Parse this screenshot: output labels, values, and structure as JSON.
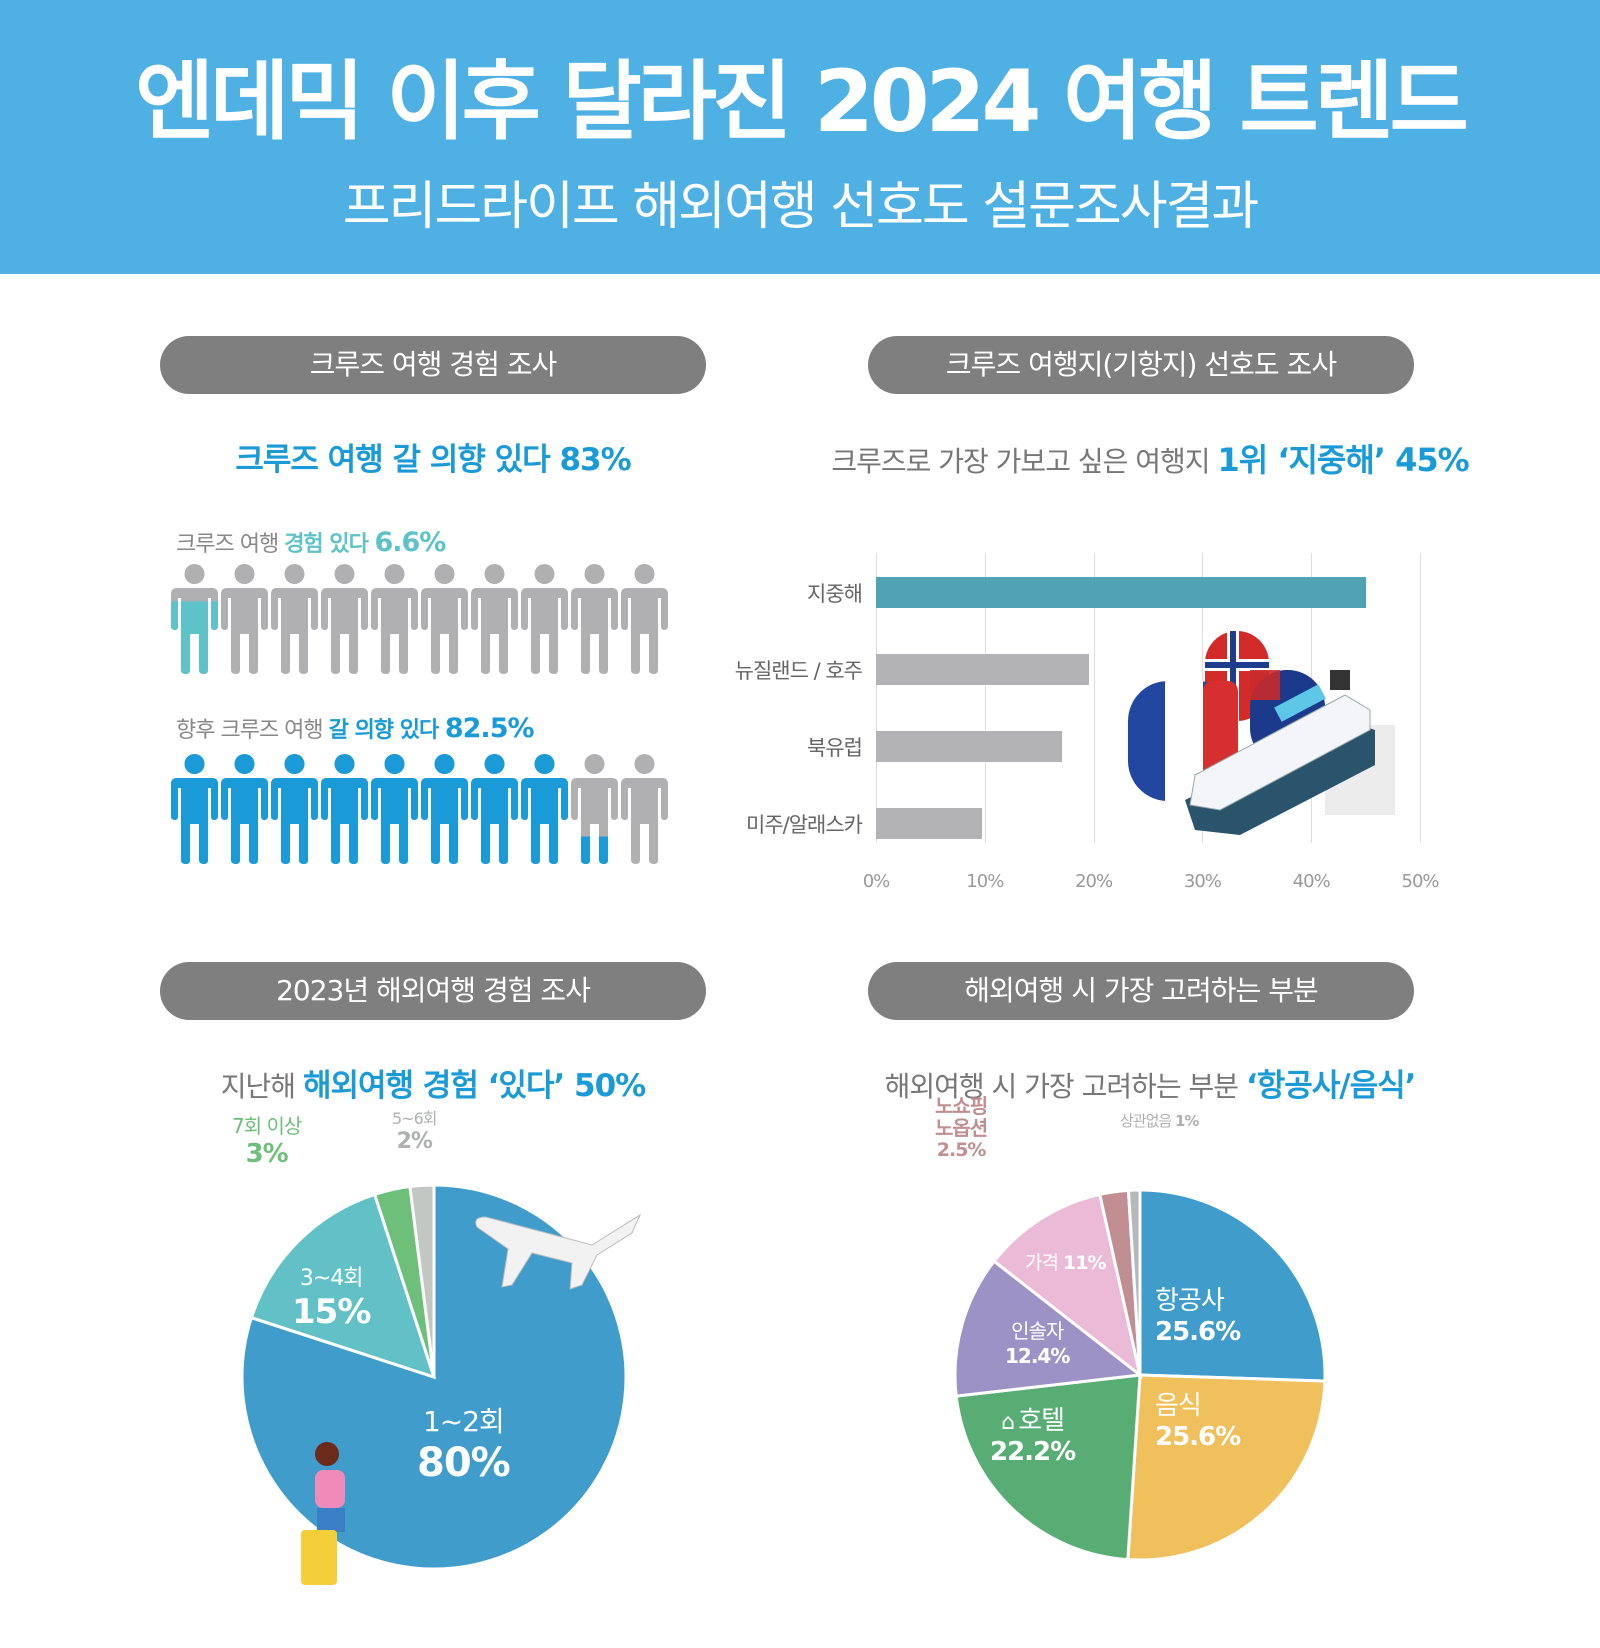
{
  "header": {
    "title": "엔데믹 이후 달라진 2024 여행 트렌드",
    "subtitle": "프리드라이프 해외여행 선호도 설문조사결과",
    "background_color": "#4fb0e4"
  },
  "sections": {
    "cruise_experience": {
      "pill": "크루즈 여행 경험 조사",
      "headline": "크루즈 여행 갈 의향 있다 83%",
      "row1": {
        "prefix": "크루즈 여행 ",
        "highlight": "경험 있다 ",
        "value": "6.6%",
        "color": "#5ec3c9"
      },
      "row2": {
        "prefix": "향후 크루즈 여행 ",
        "highlight": "갈 의향 있다 ",
        "value": "82.5%",
        "color": "#1a9ad6"
      }
    },
    "cruise_destination": {
      "pill": "크루즈 여행지(기항지) 선호도 조사",
      "headline_prefix": "크루즈로 가장 가보고 싶은 여행지 ",
      "headline_highlight": "1위 ‘지중해’ 45%"
    },
    "overseas_2023": {
      "pill": "2023년 해외여행 경험 조사",
      "headline_prefix": "지난해 ",
      "headline_highlight": "해외여행 경험 ‘있다’ 50%"
    },
    "consideration": {
      "pill": "해외여행 시 가장 고려하는 부분",
      "headline_prefix": "해외여행 시 가장 고려하는 부분 ",
      "headline_highlight": "‘항공사/음식’"
    }
  },
  "chart_data": [
    {
      "type": "pictogram",
      "title": "크루즈 여행 경험 있다",
      "units": 10,
      "value": 6.6,
      "unit": "%",
      "fill_color": "#5ec3c9"
    },
    {
      "type": "pictogram",
      "title": "향후 크루즈 여행 갈 의향 있다",
      "units": 10,
      "value": 82.5,
      "unit": "%",
      "fill_color": "#1a9ad6"
    },
    {
      "type": "bar",
      "orientation": "horizontal",
      "title": "크루즈 여행지(기항지) 선호도 조사",
      "categories": [
        "지중해",
        "뉴질랜드 / 호주",
        "북유럽",
        "미주/알래스카"
      ],
      "values": [
        45,
        19.6,
        17.1,
        9.7
      ],
      "colors": [
        "#4fa3b5",
        "#b3b3b5",
        "#b3b3b5",
        "#b3b3b5"
      ],
      "xlim": [
        0,
        50
      ],
      "xticks": [
        "0%",
        "10%",
        "20%",
        "30%",
        "40%",
        "50%"
      ],
      "grid": true,
      "xlabel": "",
      "ylabel": ""
    },
    {
      "type": "pie",
      "title": "2023년 해외여행 경험 조사",
      "categories": [
        "1~2회",
        "3~4회",
        "7회 이상",
        "5~6회"
      ],
      "values": [
        80,
        15,
        3,
        2
      ],
      "labels": [
        "80%",
        "15%",
        "3%",
        "2%"
      ],
      "colors": [
        "#3f9ccb",
        "#62c1c6",
        "#6dbf7a",
        "#c2c7c3"
      ],
      "label_colors": [
        "#ffffff",
        "#ffffff",
        "#6dbf7a",
        "#aeb1b0"
      ]
    },
    {
      "type": "pie",
      "title": "해외여행 시 가장 고려하는 부분",
      "categories": [
        "항공사",
        "음식",
        "호텔",
        "인솔자",
        "가격",
        "노쇼핑 노옵션",
        "상관없음"
      ],
      "values": [
        25.6,
        25.6,
        22.2,
        12.4,
        11,
        2.5,
        1
      ],
      "labels": [
        "25.6%",
        "25.6%",
        "22.2%",
        "12.4%",
        "11%",
        "2.5%",
        "1%"
      ],
      "colors": [
        "#3f9ccb",
        "#f0c05c",
        "#57ad73",
        "#9d92c6",
        "#ebbad6",
        "#c18f91",
        "#b7b7b7"
      ]
    }
  ]
}
